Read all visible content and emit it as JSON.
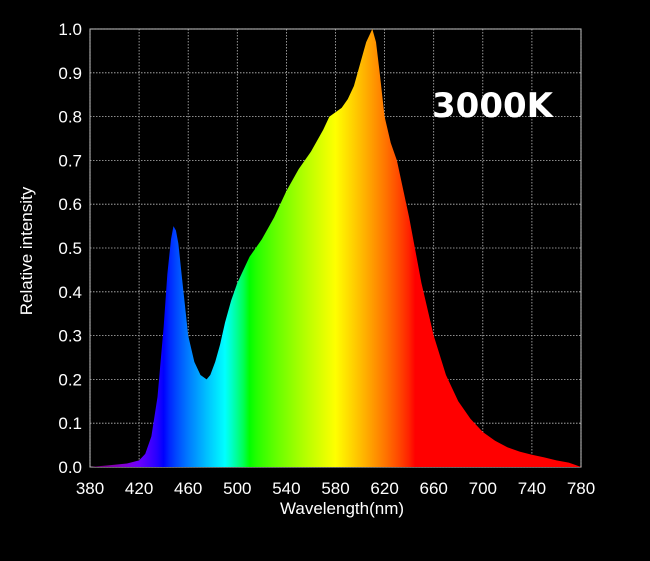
{
  "chart_data": {
    "type": "area",
    "title": "",
    "annotation": "3000K",
    "xlabel": "Wavelength(nm)",
    "ylabel": "Relative intensity",
    "xlim": [
      380,
      780
    ],
    "ylim": [
      0,
      1.0
    ],
    "x_ticks": [
      "380",
      "420",
      "460",
      "500",
      "540",
      "580",
      "620",
      "660",
      "700",
      "740",
      "780"
    ],
    "y_ticks": [
      "0.0",
      "0.1",
      "0.2",
      "0.3",
      "0.4",
      "0.5",
      "0.6",
      "0.7",
      "0.8",
      "0.9",
      "1.0"
    ],
    "grid": true,
    "background_color": "#000000",
    "text_color": "#ffffff",
    "grid_color": "#bbbbbb",
    "fill": "visible-spectrum gradient by wavelength",
    "series": [
      {
        "x": [
          380,
          400,
          410,
          420,
          425,
          430,
          435,
          440,
          443,
          446,
          448,
          450,
          452,
          455,
          460,
          465,
          470,
          475,
          478,
          482,
          486,
          490,
          495,
          500,
          505,
          510,
          520,
          530,
          540,
          550,
          560,
          570,
          575,
          580,
          585,
          590,
          595,
          600,
          605,
          610,
          613,
          616,
          620,
          625,
          630,
          640,
          650,
          660,
          670,
          680,
          690,
          700,
          710,
          720,
          730,
          740,
          750,
          760,
          770,
          775,
          780
        ],
        "y": [
          0.0,
          0.005,
          0.008,
          0.015,
          0.03,
          0.07,
          0.16,
          0.32,
          0.44,
          0.52,
          0.55,
          0.54,
          0.51,
          0.43,
          0.3,
          0.24,
          0.21,
          0.2,
          0.21,
          0.24,
          0.28,
          0.33,
          0.38,
          0.42,
          0.45,
          0.48,
          0.52,
          0.57,
          0.63,
          0.68,
          0.72,
          0.77,
          0.8,
          0.81,
          0.82,
          0.84,
          0.87,
          0.92,
          0.97,
          1.0,
          0.97,
          0.9,
          0.8,
          0.74,
          0.7,
          0.57,
          0.42,
          0.3,
          0.21,
          0.15,
          0.11,
          0.08,
          0.06,
          0.045,
          0.035,
          0.028,
          0.022,
          0.015,
          0.01,
          0.005,
          0.0
        ]
      }
    ]
  }
}
